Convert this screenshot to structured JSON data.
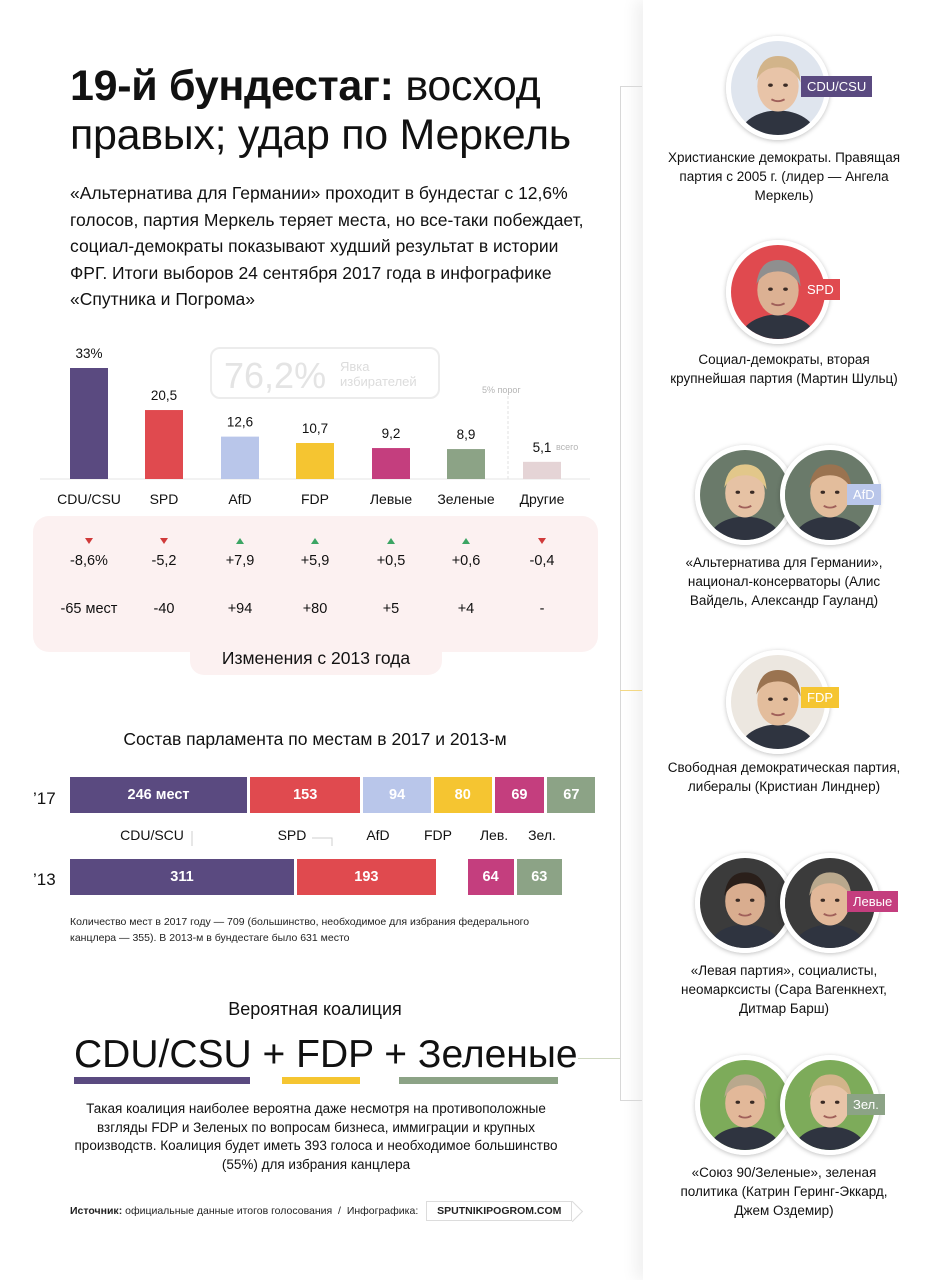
{
  "title_bold": "19-й бундестаг:",
  "title_rest": " восход правых; удар по Меркель",
  "lead": "«Альтернатива для Германии» проходит в бундестаг с 12,6% голосов, партия Меркель теряет места, но все-таки побеждает, социал-демократы показывают худший результат в истории ФРГ. Итоги выборов 24 сентября 2017 года в инфографике «Спутника и Погрома»",
  "turnout": {
    "value": "76,2%",
    "label": "Явка избирателей"
  },
  "threshold_label": "5% порог",
  "others_note": "всего",
  "colors": {
    "cdu": "#5a4a80",
    "spd": "#e04a4f",
    "afd": "#b9c6ea",
    "fdp": "#f5c531",
    "linke": "#c43e7e",
    "green": "#8ca386",
    "other": "#e5d4d6",
    "up": "#3ca564",
    "down": "#d03a3a"
  },
  "chart_data": {
    "type": "bar",
    "categories": [
      "CDU/CSU",
      "SPD",
      "AfD",
      "FDP",
      "Левые",
      "Зеленые",
      "Другие"
    ],
    "values": [
      33,
      20.5,
      12.6,
      10.7,
      9.2,
      8.9,
      5.1
    ],
    "value_labels": [
      "33%",
      "20,5",
      "12,6",
      "10,7",
      "9,2",
      "8,9",
      "5,1"
    ],
    "colors": [
      "#5a4a80",
      "#e04a4f",
      "#b9c6ea",
      "#f5c531",
      "#c43e7e",
      "#8ca386",
      "#e5d4d6"
    ],
    "ylim": [
      0,
      33
    ]
  },
  "changes": {
    "title": "Изменения с 2013 года",
    "items": [
      {
        "dir": "down",
        "pct": "-8,6%",
        "seats": "-65 мест"
      },
      {
        "dir": "down",
        "pct": "-5,2",
        "seats": "-40"
      },
      {
        "dir": "up",
        "pct": "+7,9",
        "seats": "+94"
      },
      {
        "dir": "up",
        "pct": "+5,9",
        "seats": "+80"
      },
      {
        "dir": "up",
        "pct": "+0,5",
        "seats": "+5"
      },
      {
        "dir": "up",
        "pct": "+0,6",
        "seats": "+4"
      },
      {
        "dir": "down",
        "pct": "-0,4",
        "seats": "-"
      }
    ]
  },
  "seats": {
    "title": "Состав парламента по местам в 2017 и 2013-м",
    "year_2017": "’17",
    "year_2013": "’13",
    "row_2017": [
      {
        "label": "246 мест",
        "value": 246,
        "color": "#5a4a80"
      },
      {
        "label": "153",
        "value": 153,
        "color": "#e04a4f"
      },
      {
        "label": "94",
        "value": 94,
        "color": "#b9c6ea"
      },
      {
        "label": "80",
        "value": 80,
        "color": "#f5c531"
      },
      {
        "label": "69",
        "value": 69,
        "color": "#c43e7e"
      },
      {
        "label": "67",
        "value": 67,
        "color": "#8ca386"
      }
    ],
    "row_2013": [
      {
        "label": "311",
        "value": 311,
        "color": "#5a4a80"
      },
      {
        "label": "193",
        "value": 193,
        "color": "#e04a4f"
      },
      {
        "label": "64",
        "value": 64,
        "color": "#c43e7e"
      },
      {
        "label": "63",
        "value": 63,
        "color": "#8ca386"
      }
    ],
    "party_labels": [
      "CDU/SCU",
      "SPD",
      "AfD",
      "FDP",
      "Лев.",
      "Зел."
    ],
    "note": "Количество мест в 2017 году — 709 (большинство, необходимое для избрания федерального канцлера — 355). В 2013-м в бундестаге было 631 место"
  },
  "coalition": {
    "title": "Вероятная коалиция",
    "p1": "CDU/CSU",
    "plus": "+",
    "p2": "FDP",
    "p3": "Зеленые",
    "text": "Такая коалиция наиболее вероятна даже несмотря на противоположные взгляды FDP и Зеленых по вопросам бизнеса, иммиграции и крупных производств. Коалиция будет иметь 393 голоса и необходимое большинство (55%) для избрания канцлера"
  },
  "footer": {
    "source_label": "Источник:",
    "source_text": " официальные данные итогов голосования",
    "sep": "  /  ",
    "infographic_label": "Инфографика:",
    "badge": "SPUTNIKIPOGROM.COM"
  },
  "parties": [
    {
      "badge": "CDU/CSU",
      "color": "#5a4a80",
      "desc": "Христианские демократы. Правящая партия с 2005 г. (лидер — Ангела Меркель)"
    },
    {
      "badge": "SPD",
      "color": "#e04a4f",
      "desc": "Социал-демократы, вторая крупнейшая партия (Мартин Шульц)"
    },
    {
      "badge": "AfD",
      "color": "#b9c6ea",
      "desc": "«Альтернатива для Германии», национал-консерваторы (Алис Вайдель, Александр Гауланд)"
    },
    {
      "badge": "FDP",
      "color": "#f5c531",
      "desc": "Свободная демократическая партия, либералы (Кристиан Линднер)"
    },
    {
      "badge": "Левые",
      "color": "#c43e7e",
      "desc": "«Левая партия», социалисты, неомарксисты (Сара Вагенкнехт, Дитмар Барш)"
    },
    {
      "badge": "Зел.",
      "color": "#8ca386",
      "desc": "«Союз 90/Зеленые», зеленая политика (Катрин Геринг-Эккард, Джем Оздемир)"
    }
  ]
}
